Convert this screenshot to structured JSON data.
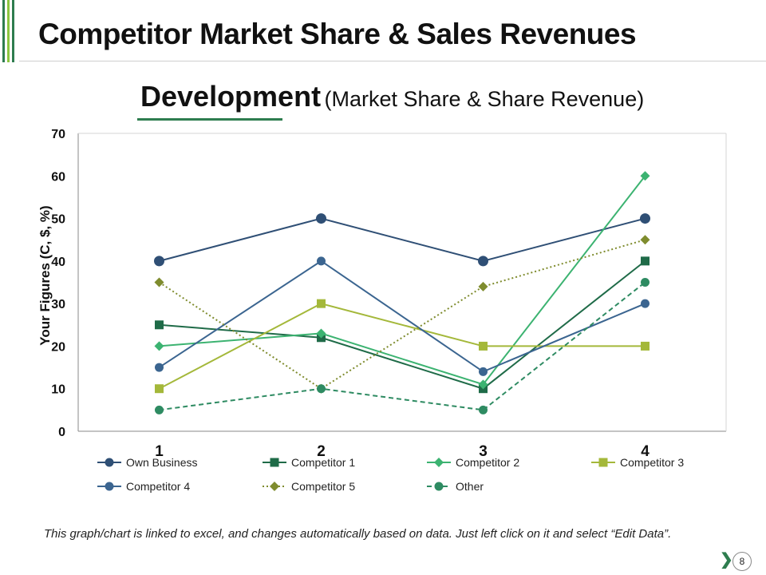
{
  "page": {
    "title": "Competitor Market Share & Sales Revenues",
    "subtitle_main": "Development",
    "subtitle_paren": "(Market Share & Share Revenue)",
    "footer_note": "This graph/chart is linked to excel, and changes automatically based on data. Just left click on it and select “Edit Data”.",
    "page_number": "8",
    "colors": {
      "accent_dark": "#2e7d4f",
      "accent_light": "#8cc63f"
    }
  },
  "chart_data": {
    "type": "line",
    "title": "",
    "xlabel": "",
    "ylabel": "Your Figures (C, $, %)",
    "categories": [
      "1",
      "2",
      "3",
      "4"
    ],
    "ylim": [
      0,
      70
    ],
    "yticks": [
      0,
      10,
      20,
      30,
      40,
      50,
      60,
      70
    ],
    "grid": false,
    "legend": "bottom",
    "series": [
      {
        "name": "Own Business",
        "values": [
          40,
          50,
          40,
          50
        ],
        "color": "#2f4f75",
        "marker": "circle-lg",
        "dash": "solid"
      },
      {
        "name": "Competitor 1",
        "values": [
          25,
          22,
          10,
          40
        ],
        "color": "#1f6b48",
        "marker": "square",
        "dash": "solid"
      },
      {
        "name": "Competitor 2",
        "values": [
          20,
          23,
          11,
          60
        ],
        "color": "#3cb371",
        "marker": "diamond",
        "dash": "solid"
      },
      {
        "name": "Competitor 3",
        "values": [
          10,
          30,
          20,
          20
        ],
        "color": "#a4b83a",
        "marker": "square",
        "dash": "solid"
      },
      {
        "name": "Competitor 4",
        "values": [
          15,
          40,
          14,
          30
        ],
        "color": "#3b6590",
        "marker": "circle",
        "dash": "solid"
      },
      {
        "name": "Competitor 5",
        "values": [
          35,
          10,
          34,
          45
        ],
        "color": "#7f8c2e",
        "marker": "diamond",
        "dash": "dotted"
      },
      {
        "name": "Other",
        "values": [
          5,
          10,
          5,
          35
        ],
        "color": "#2e8b62",
        "marker": "circle",
        "dash": "dashed"
      }
    ]
  }
}
